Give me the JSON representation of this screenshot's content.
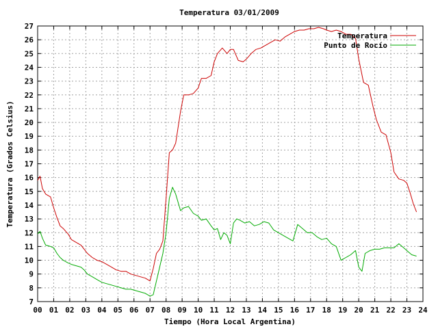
{
  "chart_data": {
    "type": "line",
    "title": "Temperatura 03/01/2009",
    "xlabel": "Tiempo (Hora Local Argentina)",
    "ylabel": "Temperatura (Grados Celsius)",
    "xlim": [
      0,
      24
    ],
    "ylim": [
      7,
      27
    ],
    "grid": true,
    "legend_position": "top-right",
    "x_ticks": [
      "00",
      "01",
      "02",
      "03",
      "04",
      "05",
      "06",
      "07",
      "08",
      "09",
      "10",
      "11",
      "12",
      "13",
      "14",
      "15",
      "16",
      "17",
      "18",
      "19",
      "20",
      "21",
      "22",
      "23",
      "24"
    ],
    "y_ticks": [
      "7",
      "8",
      "9",
      "10",
      "11",
      "12",
      "13",
      "14",
      "15",
      "16",
      "17",
      "18",
      "19",
      "20",
      "21",
      "22",
      "23",
      "24",
      "25",
      "26",
      "27"
    ],
    "series": [
      {
        "name": "Temperatura",
        "color": "#cc0000",
        "x": [
          0,
          0.15,
          0.3,
          0.5,
          0.8,
          1.0,
          1.2,
          1.4,
          1.6,
          1.9,
          2.1,
          2.4,
          2.7,
          2.9,
          3.1,
          3.4,
          3.7,
          4.0,
          4.3,
          4.6,
          4.9,
          5.2,
          5.5,
          5.8,
          6.1,
          6.4,
          6.7,
          7.0,
          7.2,
          7.4,
          7.6,
          7.8,
          8.0,
          8.2,
          8.4,
          8.6,
          8.9,
          9.1,
          9.4,
          9.7,
          10.0,
          10.2,
          10.5,
          10.8,
          11.0,
          11.2,
          11.5,
          11.8,
          12.0,
          12.2,
          12.5,
          12.8,
          13.0,
          13.3,
          13.6,
          13.9,
          14.2,
          14.5,
          14.8,
          15.1,
          15.4,
          15.7,
          16.0,
          16.3,
          16.6,
          16.9,
          17.2,
          17.5,
          17.8,
          18.0,
          18.3,
          18.6,
          18.9,
          19.2,
          19.5,
          19.8,
          20.0,
          20.3,
          20.6,
          20.9,
          21.1,
          21.4,
          21.7,
          22.0,
          22.2,
          22.5,
          22.8,
          23.0,
          23.2,
          23.4,
          23.6
        ],
        "y": [
          15.8,
          16.1,
          15.2,
          14.8,
          14.6,
          13.8,
          13.1,
          12.5,
          12.3,
          11.9,
          11.5,
          11.3,
          11.1,
          10.8,
          10.5,
          10.2,
          10.0,
          9.9,
          9.7,
          9.5,
          9.3,
          9.2,
          9.2,
          9.0,
          8.9,
          8.8,
          8.7,
          8.5,
          9.4,
          10.5,
          10.8,
          11.4,
          14.5,
          17.8,
          18.0,
          18.5,
          20.8,
          22.0,
          22.0,
          22.1,
          22.5,
          23.2,
          23.2,
          23.4,
          24.4,
          25.0,
          25.4,
          25.0,
          25.3,
          25.3,
          24.5,
          24.4,
          24.6,
          25.0,
          25.3,
          25.4,
          25.6,
          25.8,
          26.0,
          25.9,
          26.2,
          26.4,
          26.6,
          26.7,
          26.7,
          26.8,
          26.8,
          26.9,
          26.8,
          26.7,
          26.6,
          26.7,
          26.6,
          26.4,
          26.4,
          26.1,
          24.6,
          22.9,
          22.7,
          21.1,
          20.2,
          19.3,
          19.1,
          17.8,
          16.4,
          15.9,
          15.8,
          15.6,
          14.9,
          14.1,
          13.5
        ]
      },
      {
        "name": "Punto de Rocío",
        "color": "#00aa00",
        "x": [
          0,
          0.15,
          0.3,
          0.5,
          0.8,
          1.0,
          1.2,
          1.4,
          1.6,
          1.9,
          2.1,
          2.4,
          2.7,
          2.9,
          3.1,
          3.4,
          3.7,
          4.0,
          4.3,
          4.6,
          4.9,
          5.2,
          5.5,
          5.8,
          6.1,
          6.4,
          6.7,
          7.0,
          7.2,
          7.4,
          7.6,
          7.8,
          8.0,
          8.2,
          8.4,
          8.6,
          8.9,
          9.1,
          9.4,
          9.7,
          10.0,
          10.2,
          10.5,
          10.8,
          11.0,
          11.2,
          11.4,
          11.6,
          11.8,
          12.0,
          12.2,
          12.4,
          12.6,
          12.9,
          13.2,
          13.5,
          13.8,
          14.1,
          14.4,
          14.7,
          15.0,
          15.3,
          15.6,
          15.9,
          16.2,
          16.5,
          16.8,
          17.1,
          17.4,
          17.7,
          18.0,
          18.3,
          18.6,
          18.9,
          19.2,
          19.5,
          19.8,
          20.0,
          20.2,
          20.4,
          20.7,
          21.0,
          21.3,
          21.6,
          21.9,
          22.2,
          22.5,
          22.8,
          23.1,
          23.3,
          23.6
        ],
        "y": [
          11.9,
          12.1,
          11.6,
          11.1,
          11.0,
          10.9,
          10.5,
          10.2,
          10.0,
          9.8,
          9.7,
          9.6,
          9.5,
          9.3,
          9.0,
          8.8,
          8.6,
          8.4,
          8.3,
          8.2,
          8.1,
          8.0,
          7.9,
          7.9,
          7.8,
          7.7,
          7.6,
          7.4,
          7.5,
          8.5,
          9.5,
          10.5,
          12.0,
          14.5,
          15.3,
          14.8,
          13.6,
          13.8,
          13.9,
          13.4,
          13.2,
          12.9,
          13.0,
          12.5,
          12.2,
          12.3,
          11.5,
          12.0,
          11.8,
          11.2,
          12.7,
          13.0,
          12.9,
          12.7,
          12.8,
          12.5,
          12.6,
          12.8,
          12.7,
          12.2,
          12.0,
          11.8,
          11.6,
          11.4,
          12.6,
          12.3,
          12.0,
          12.0,
          11.7,
          11.5,
          11.6,
          11.2,
          11.0,
          10.0,
          10.2,
          10.4,
          10.7,
          9.5,
          9.2,
          10.5,
          10.7,
          10.8,
          10.8,
          10.9,
          10.9,
          10.9,
          11.2,
          10.9,
          10.6,
          10.4,
          10.3
        ]
      }
    ]
  }
}
